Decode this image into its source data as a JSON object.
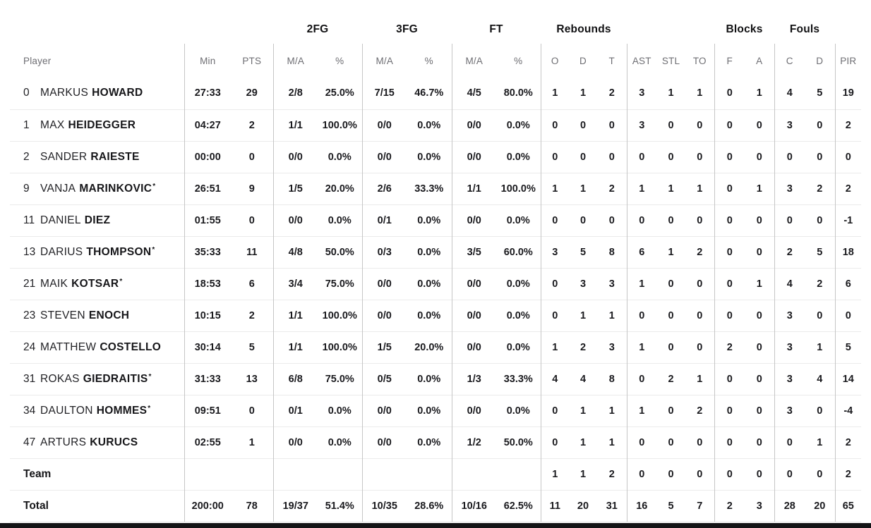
{
  "colors": {
    "data_text": "#1a1a1e",
    "header_text": "#6e6e73",
    "group_header_text": "#111113",
    "column_divider": "#c6c6c6",
    "row_divider": "#ebebeb",
    "footer_bar": "#141416",
    "background": "#ffffff"
  },
  "table": {
    "player_header": "Player",
    "group_headers": [
      "2FG",
      "3FG",
      "FT",
      "Rebounds",
      "Blocks",
      "Fouls"
    ],
    "sub_headers": [
      "Min",
      "PTS",
      "M/A",
      "%",
      "M/A",
      "%",
      "M/A",
      "%",
      "O",
      "D",
      "T",
      "AST",
      "STL",
      "TO",
      "F",
      "A",
      "C",
      "D",
      "PIR"
    ],
    "rows": [
      {
        "num": "0",
        "first": "MARKUS",
        "last": "HOWARD",
        "mark": "",
        "min": "27:33",
        "pts": "29",
        "fg2_ma": "2/8",
        "fg2_pct": "25.0%",
        "fg3_ma": "7/15",
        "fg3_pct": "46.7%",
        "ft_ma": "4/5",
        "ft_pct": "80.0%",
        "reb_o": "1",
        "reb_d": "1",
        "reb_t": "2",
        "ast": "3",
        "stl": "1",
        "to": "1",
        "blk_f": "0",
        "blk_a": "1",
        "foul_c": "4",
        "foul_d": "5",
        "pir": "19"
      },
      {
        "num": "1",
        "first": "MAX",
        "last": "HEIDEGGER",
        "mark": "",
        "min": "04:27",
        "pts": "2",
        "fg2_ma": "1/1",
        "fg2_pct": "100.0%",
        "fg3_ma": "0/0",
        "fg3_pct": "0.0%",
        "ft_ma": "0/0",
        "ft_pct": "0.0%",
        "reb_o": "0",
        "reb_d": "0",
        "reb_t": "0",
        "ast": "3",
        "stl": "0",
        "to": "0",
        "blk_f": "0",
        "blk_a": "0",
        "foul_c": "3",
        "foul_d": "0",
        "pir": "2"
      },
      {
        "num": "2",
        "first": "SANDER",
        "last": "RAIESTE",
        "mark": "",
        "min": "00:00",
        "pts": "0",
        "fg2_ma": "0/0",
        "fg2_pct": "0.0%",
        "fg3_ma": "0/0",
        "fg3_pct": "0.0%",
        "ft_ma": "0/0",
        "ft_pct": "0.0%",
        "reb_o": "0",
        "reb_d": "0",
        "reb_t": "0",
        "ast": "0",
        "stl": "0",
        "to": "0",
        "blk_f": "0",
        "blk_a": "0",
        "foul_c": "0",
        "foul_d": "0",
        "pir": "0"
      },
      {
        "num": "9",
        "first": "VANJA",
        "last": "MARINKOVIC",
        "mark": "*",
        "min": "26:51",
        "pts": "9",
        "fg2_ma": "1/5",
        "fg2_pct": "20.0%",
        "fg3_ma": "2/6",
        "fg3_pct": "33.3%",
        "ft_ma": "1/1",
        "ft_pct": "100.0%",
        "reb_o": "1",
        "reb_d": "1",
        "reb_t": "2",
        "ast": "1",
        "stl": "1",
        "to": "1",
        "blk_f": "0",
        "blk_a": "1",
        "foul_c": "3",
        "foul_d": "2",
        "pir": "2"
      },
      {
        "num": "11",
        "first": "DANIEL",
        "last": "DIEZ",
        "mark": "",
        "min": "01:55",
        "pts": "0",
        "fg2_ma": "0/0",
        "fg2_pct": "0.0%",
        "fg3_ma": "0/1",
        "fg3_pct": "0.0%",
        "ft_ma": "0/0",
        "ft_pct": "0.0%",
        "reb_o": "0",
        "reb_d": "0",
        "reb_t": "0",
        "ast": "0",
        "stl": "0",
        "to": "0",
        "blk_f": "0",
        "blk_a": "0",
        "foul_c": "0",
        "foul_d": "0",
        "pir": "-1"
      },
      {
        "num": "13",
        "first": "DARIUS",
        "last": "THOMPSON",
        "mark": "*",
        "min": "35:33",
        "pts": "11",
        "fg2_ma": "4/8",
        "fg2_pct": "50.0%",
        "fg3_ma": "0/3",
        "fg3_pct": "0.0%",
        "ft_ma": "3/5",
        "ft_pct": "60.0%",
        "reb_o": "3",
        "reb_d": "5",
        "reb_t": "8",
        "ast": "6",
        "stl": "1",
        "to": "2",
        "blk_f": "0",
        "blk_a": "0",
        "foul_c": "2",
        "foul_d": "5",
        "pir": "18"
      },
      {
        "num": "21",
        "first": "MAIK",
        "last": "KOTSAR",
        "mark": "*",
        "min": "18:53",
        "pts": "6",
        "fg2_ma": "3/4",
        "fg2_pct": "75.0%",
        "fg3_ma": "0/0",
        "fg3_pct": "0.0%",
        "ft_ma": "0/0",
        "ft_pct": "0.0%",
        "reb_o": "0",
        "reb_d": "3",
        "reb_t": "3",
        "ast": "1",
        "stl": "0",
        "to": "0",
        "blk_f": "0",
        "blk_a": "1",
        "foul_c": "4",
        "foul_d": "2",
        "pir": "6"
      },
      {
        "num": "23",
        "first": "STEVEN",
        "last": "ENOCH",
        "mark": "",
        "min": "10:15",
        "pts": "2",
        "fg2_ma": "1/1",
        "fg2_pct": "100.0%",
        "fg3_ma": "0/0",
        "fg3_pct": "0.0%",
        "ft_ma": "0/0",
        "ft_pct": "0.0%",
        "reb_o": "0",
        "reb_d": "1",
        "reb_t": "1",
        "ast": "0",
        "stl": "0",
        "to": "0",
        "blk_f": "0",
        "blk_a": "0",
        "foul_c": "3",
        "foul_d": "0",
        "pir": "0"
      },
      {
        "num": "24",
        "first": "MATTHEW",
        "last": "COSTELLO",
        "mark": "",
        "min": "30:14",
        "pts": "5",
        "fg2_ma": "1/1",
        "fg2_pct": "100.0%",
        "fg3_ma": "1/5",
        "fg3_pct": "20.0%",
        "ft_ma": "0/0",
        "ft_pct": "0.0%",
        "reb_o": "1",
        "reb_d": "2",
        "reb_t": "3",
        "ast": "1",
        "stl": "0",
        "to": "0",
        "blk_f": "2",
        "blk_a": "0",
        "foul_c": "3",
        "foul_d": "1",
        "pir": "5"
      },
      {
        "num": "31",
        "first": "ROKAS",
        "last": "GIEDRAITIS",
        "mark": "*",
        "min": "31:33",
        "pts": "13",
        "fg2_ma": "6/8",
        "fg2_pct": "75.0%",
        "fg3_ma": "0/5",
        "fg3_pct": "0.0%",
        "ft_ma": "1/3",
        "ft_pct": "33.3%",
        "reb_o": "4",
        "reb_d": "4",
        "reb_t": "8",
        "ast": "0",
        "stl": "2",
        "to": "1",
        "blk_f": "0",
        "blk_a": "0",
        "foul_c": "3",
        "foul_d": "4",
        "pir": "14"
      },
      {
        "num": "34",
        "first": "DAULTON",
        "last": "HOMMES",
        "mark": "*",
        "min": "09:51",
        "pts": "0",
        "fg2_ma": "0/1",
        "fg2_pct": "0.0%",
        "fg3_ma": "0/0",
        "fg3_pct": "0.0%",
        "ft_ma": "0/0",
        "ft_pct": "0.0%",
        "reb_o": "0",
        "reb_d": "1",
        "reb_t": "1",
        "ast": "1",
        "stl": "0",
        "to": "2",
        "blk_f": "0",
        "blk_a": "0",
        "foul_c": "3",
        "foul_d": "0",
        "pir": "-4"
      },
      {
        "num": "47",
        "first": "ARTURS",
        "last": "KURUCS",
        "mark": "",
        "min": "02:55",
        "pts": "1",
        "fg2_ma": "0/0",
        "fg2_pct": "0.0%",
        "fg3_ma": "0/0",
        "fg3_pct": "0.0%",
        "ft_ma": "1/2",
        "ft_pct": "50.0%",
        "reb_o": "0",
        "reb_d": "1",
        "reb_t": "1",
        "ast": "0",
        "stl": "0",
        "to": "0",
        "blk_f": "0",
        "blk_a": "0",
        "foul_c": "0",
        "foul_d": "1",
        "pir": "2"
      },
      {
        "label": "Team",
        "min": "",
        "pts": "",
        "fg2_ma": "",
        "fg2_pct": "",
        "fg3_ma": "",
        "fg3_pct": "",
        "ft_ma": "",
        "ft_pct": "",
        "reb_o": "1",
        "reb_d": "1",
        "reb_t": "2",
        "ast": "0",
        "stl": "0",
        "to": "0",
        "blk_f": "0",
        "blk_a": "0",
        "foul_c": "0",
        "foul_d": "0",
        "pir": "2"
      },
      {
        "label": "Total",
        "min": "200:00",
        "pts": "78",
        "fg2_ma": "19/37",
        "fg2_pct": "51.4%",
        "fg3_ma": "10/35",
        "fg3_pct": "28.6%",
        "ft_ma": "10/16",
        "ft_pct": "62.5%",
        "reb_o": "11",
        "reb_d": "20",
        "reb_t": "31",
        "ast": "16",
        "stl": "5",
        "to": "7",
        "blk_f": "2",
        "blk_a": "3",
        "foul_c": "28",
        "foul_d": "20",
        "pir": "65"
      }
    ]
  }
}
